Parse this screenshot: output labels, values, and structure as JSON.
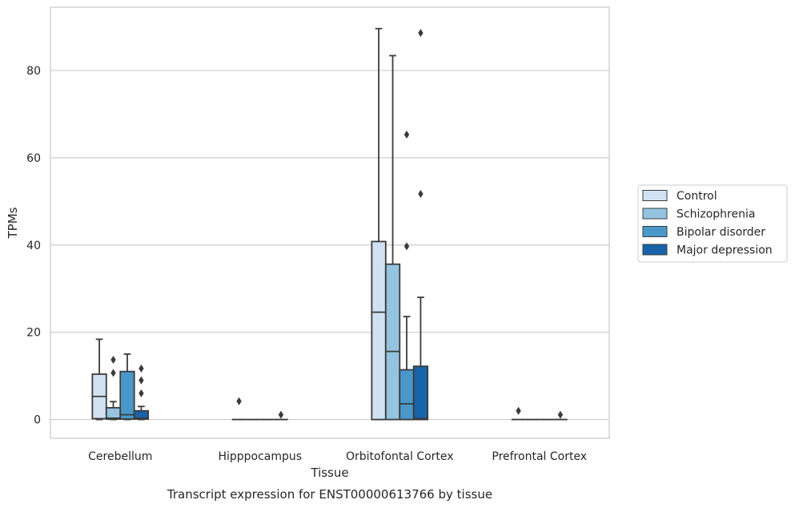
{
  "chart_data": {
    "type": "box",
    "caption": "Transcript expression for ENST00000613766 by tissue",
    "xlabel": "Tissue",
    "ylabel": "TPMs",
    "ylim": [
      -4.3,
      94.5
    ],
    "yticks": [
      0,
      20,
      40,
      60,
      80
    ],
    "grid": "horizontal",
    "legend_position": "right",
    "categories": [
      "Cerebellum",
      "Hipppocampus",
      "Orbitofontal Cortex",
      "Prefrontal Cortex"
    ],
    "series": [
      {
        "name": "Control",
        "color": "#d0e1f2",
        "boxes": [
          {
            "min": 0,
            "q1": 0.2,
            "median": 5.3,
            "q3": 10.4,
            "max": 18.4,
            "outliers": []
          },
          {
            "min": 0,
            "q1": 0,
            "median": 0,
            "q3": 0,
            "max": 0,
            "outliers": [
              4.2
            ]
          },
          {
            "min": 0,
            "q1": 0,
            "median": 24.6,
            "q3": 40.8,
            "max": 89.6,
            "outliers": []
          },
          {
            "min": 0,
            "q1": 0,
            "median": 0,
            "q3": 0,
            "max": 0,
            "outliers": [
              2.0
            ]
          }
        ]
      },
      {
        "name": "Schizophrenia",
        "color": "#94c4df",
        "boxes": [
          {
            "min": 0,
            "q1": 0.1,
            "median": 0.3,
            "q3": 2.7,
            "max": 4.1,
            "outliers": [
              10.7,
              13.7
            ]
          },
          {
            "min": 0,
            "q1": 0,
            "median": 0,
            "q3": 0,
            "max": 0,
            "outliers": []
          },
          {
            "min": 0,
            "q1": 0,
            "median": 15.6,
            "q3": 35.6,
            "max": 83.4,
            "outliers": []
          },
          {
            "min": 0,
            "q1": 0,
            "median": 0,
            "q3": 0,
            "max": 0,
            "outliers": []
          }
        ]
      },
      {
        "name": "Bipolar disorder",
        "color": "#4a98c9",
        "boxes": [
          {
            "min": 0,
            "q1": 0.1,
            "median": 1.1,
            "q3": 11.0,
            "max": 15.0,
            "outliers": []
          },
          {
            "min": 0,
            "q1": 0,
            "median": 0,
            "q3": 0,
            "max": 0,
            "outliers": []
          },
          {
            "min": 0,
            "q1": 0,
            "median": 3.6,
            "q3": 11.4,
            "max": 23.6,
            "outliers": [
              39.7,
              65.3
            ]
          },
          {
            "min": 0,
            "q1": 0,
            "median": 0,
            "q3": 0,
            "max": 0,
            "outliers": []
          }
        ]
      },
      {
        "name": "Major depression",
        "color": "#1764ab",
        "boxes": [
          {
            "min": 0,
            "q1": 0.1,
            "median": 0.3,
            "q3": 2.0,
            "max": 3.0,
            "outliers": [
              6.0,
              9.0,
              11.7
            ]
          },
          {
            "min": 0,
            "q1": 0,
            "median": 0,
            "q3": 0,
            "max": 0,
            "outliers": [
              1.1
            ]
          },
          {
            "min": 0,
            "q1": 0,
            "median": 0.2,
            "q3": 12.2,
            "max": 28.0,
            "outliers": [
              51.7,
              88.6
            ]
          },
          {
            "min": 0,
            "q1": 0,
            "median": 0,
            "q3": 0,
            "max": 0,
            "outliers": [
              1.1
            ]
          }
        ]
      }
    ]
  }
}
